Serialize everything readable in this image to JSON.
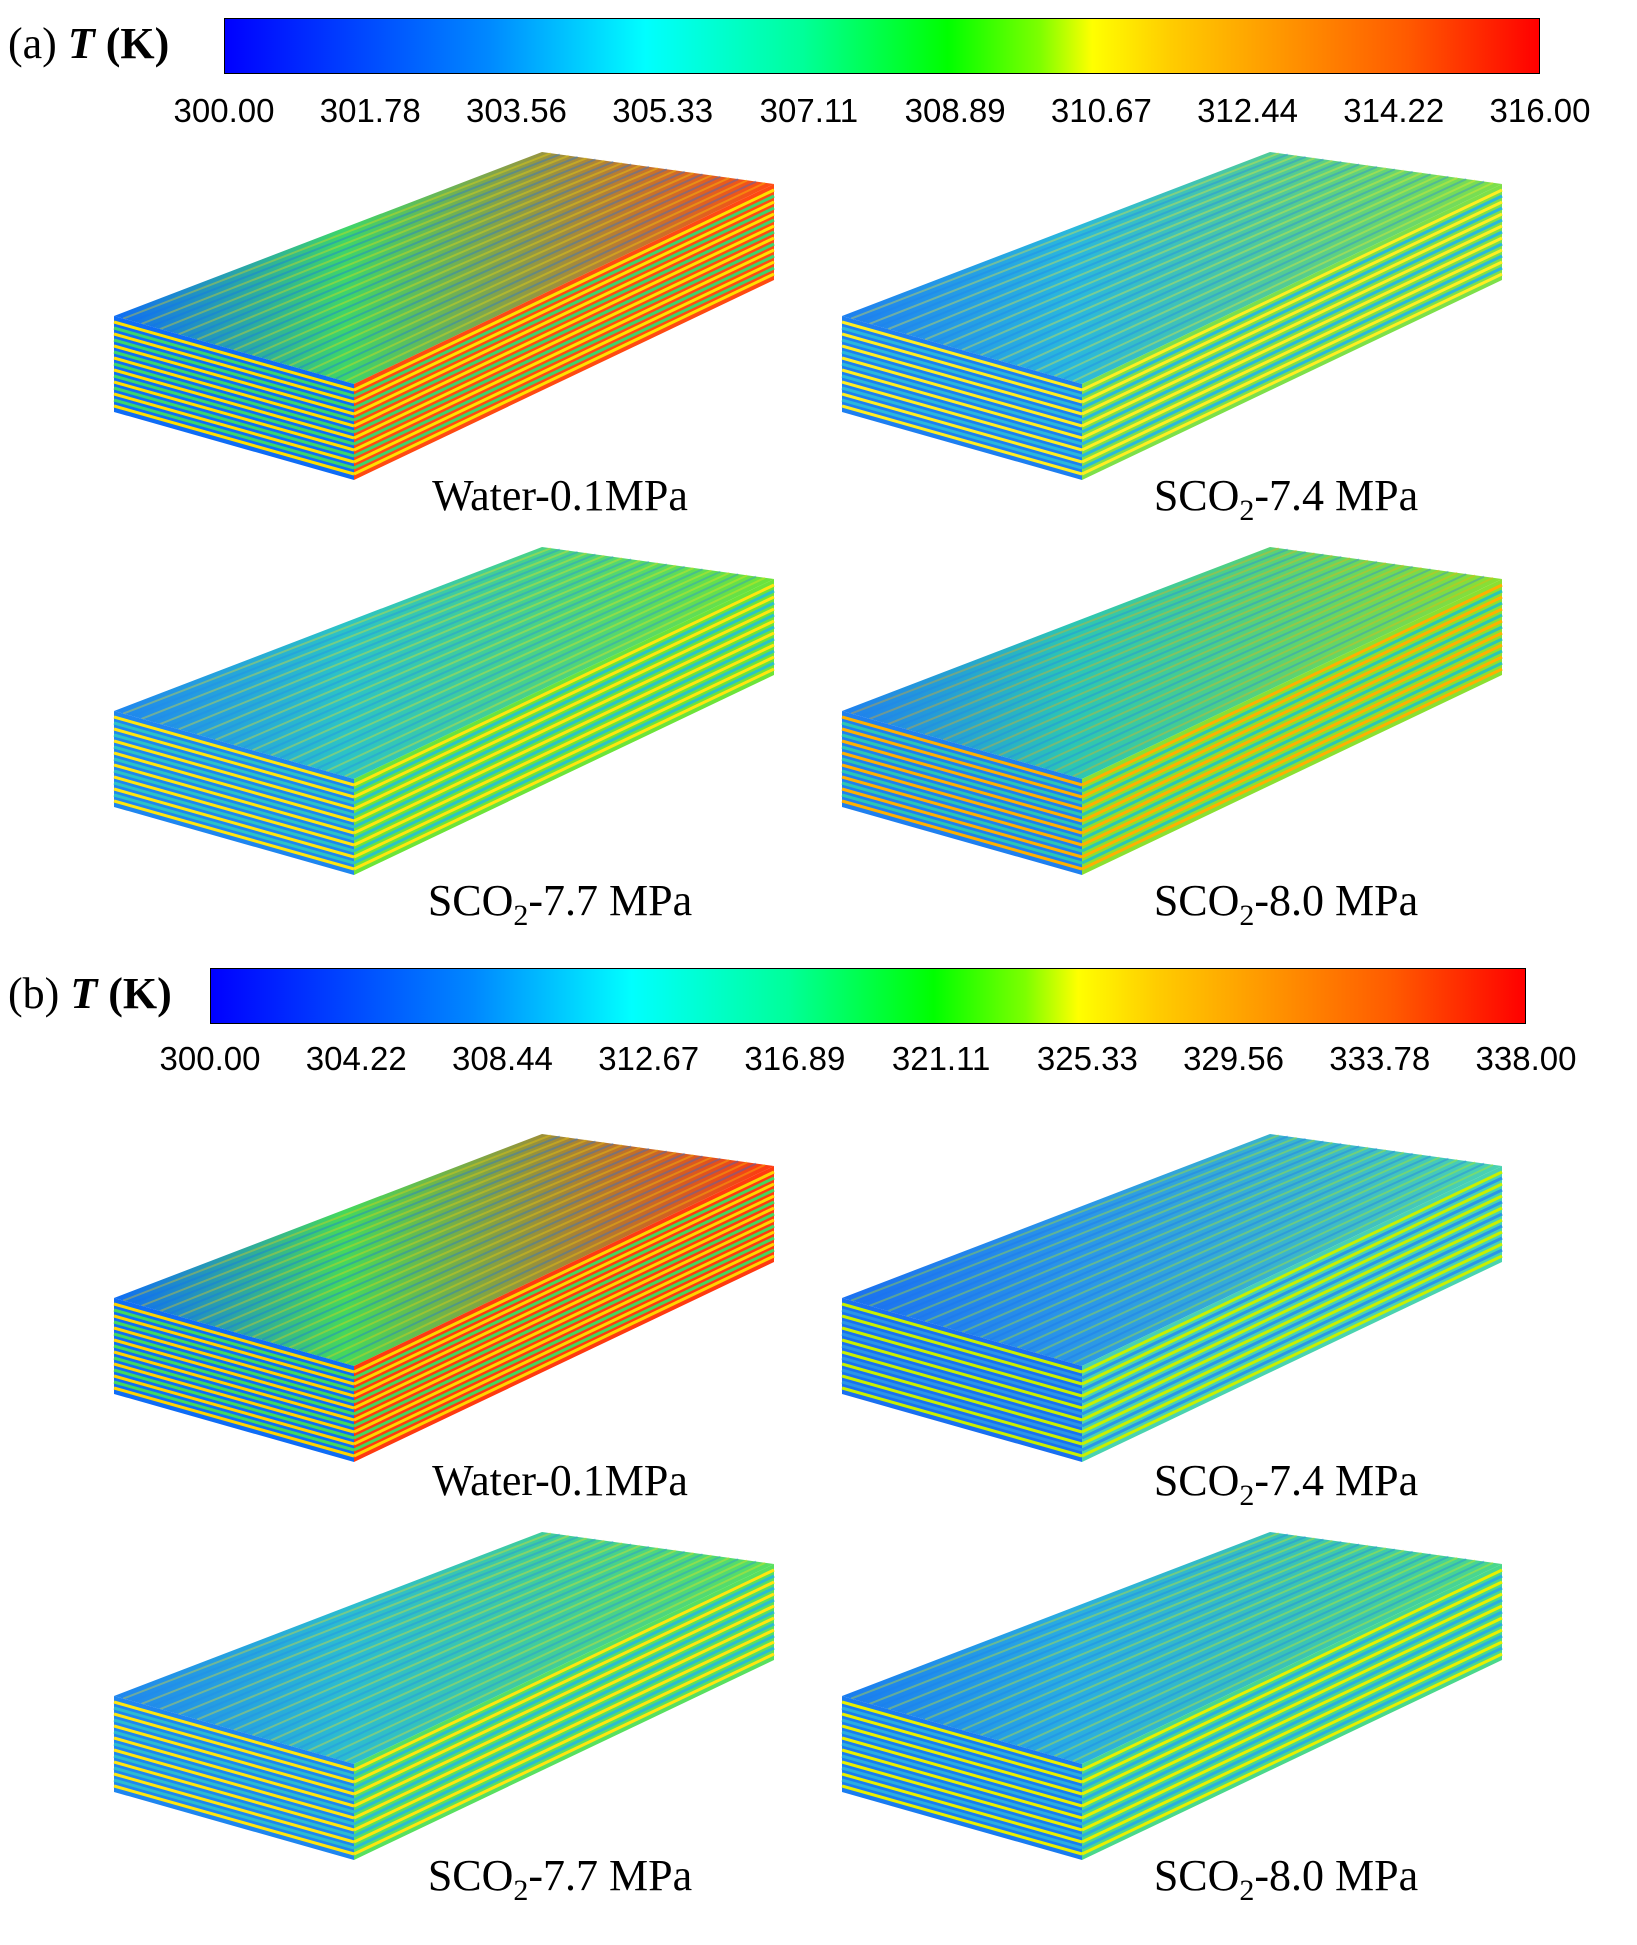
{
  "panels": [
    {
      "id": "a",
      "label": "(a)",
      "quantity_symbol": "T",
      "unit": "(K)",
      "colorbar": {
        "min": 300.0,
        "max": 316.0,
        "ticks": [
          "300.00",
          "301.78",
          "303.56",
          "305.33",
          "307.11",
          "308.89",
          "310.67",
          "312.44",
          "314.22",
          "316.00"
        ]
      },
      "cases": [
        {
          "name": "Water-0.1MPa",
          "prefix": "Water-0.1MPa",
          "subscript": "",
          "suffix": "",
          "top_color": "#3ed56a",
          "end_color": "#ff4a12",
          "stripe_color": "#ffe000",
          "front_color": "#0f6df5"
        },
        {
          "name": "SCO2-7.4 MPa",
          "prefix": "SCO",
          "subscript": "2",
          "suffix": "-7.4 MPa",
          "top_color": "#2ab8dc",
          "end_color": "#7de04a",
          "stripe_color": "#ffee22",
          "front_color": "#1e7ff0"
        },
        {
          "name": "SCO2-7.7 MPa",
          "prefix": "SCO",
          "subscript": "2",
          "suffix": "-7.7 MPa",
          "top_color": "#2cc3c6",
          "end_color": "#6ce43a",
          "stripe_color": "#ffe60f",
          "front_color": "#1f86ef"
        },
        {
          "name": "SCO2-8.0 MPa",
          "prefix": "SCO",
          "subscript": "2",
          "suffix": "-8.0 MPa",
          "top_color": "#2cc6b4",
          "end_color": "#8ae032",
          "stripe_color": "#ffb000",
          "front_color": "#1f80ef"
        }
      ]
    },
    {
      "id": "b",
      "label": "(b)",
      "quantity_symbol": "T",
      "unit": "(K)",
      "colorbar": {
        "min": 300.0,
        "max": 338.0,
        "ticks": [
          "300.00",
          "304.22",
          "308.44",
          "312.67",
          "316.89",
          "321.11",
          "325.33",
          "329.56",
          "333.78",
          "338.00"
        ]
      },
      "cases": [
        {
          "name": "Water-0.1MPa",
          "prefix": "Water-0.1MPa",
          "subscript": "",
          "suffix": "",
          "top_color": "#45d85c",
          "end_color": "#ff3a10",
          "stripe_color": "#ffd400",
          "front_color": "#0f6df5"
        },
        {
          "name": "SCO2-7.4 MPa",
          "prefix": "SCO",
          "subscript": "2",
          "suffix": "-7.4 MPa",
          "top_color": "#2a96e8",
          "end_color": "#4ad3b0",
          "stripe_color": "#c8f000",
          "front_color": "#1a70f0"
        },
        {
          "name": "SCO2-7.7 MPa",
          "prefix": "SCO",
          "subscript": "2",
          "suffix": "-7.7 MPa",
          "top_color": "#2cbcd0",
          "end_color": "#58e060",
          "stripe_color": "#ffe60f",
          "front_color": "#1f86ef"
        },
        {
          "name": "SCO2-8.0 MPa",
          "prefix": "SCO",
          "subscript": "2",
          "suffix": "-8.0 MPa",
          "top_color": "#2aaee0",
          "end_color": "#4ad88c",
          "stripe_color": "#e8f000",
          "front_color": "#1a7cf0"
        }
      ]
    }
  ]
}
